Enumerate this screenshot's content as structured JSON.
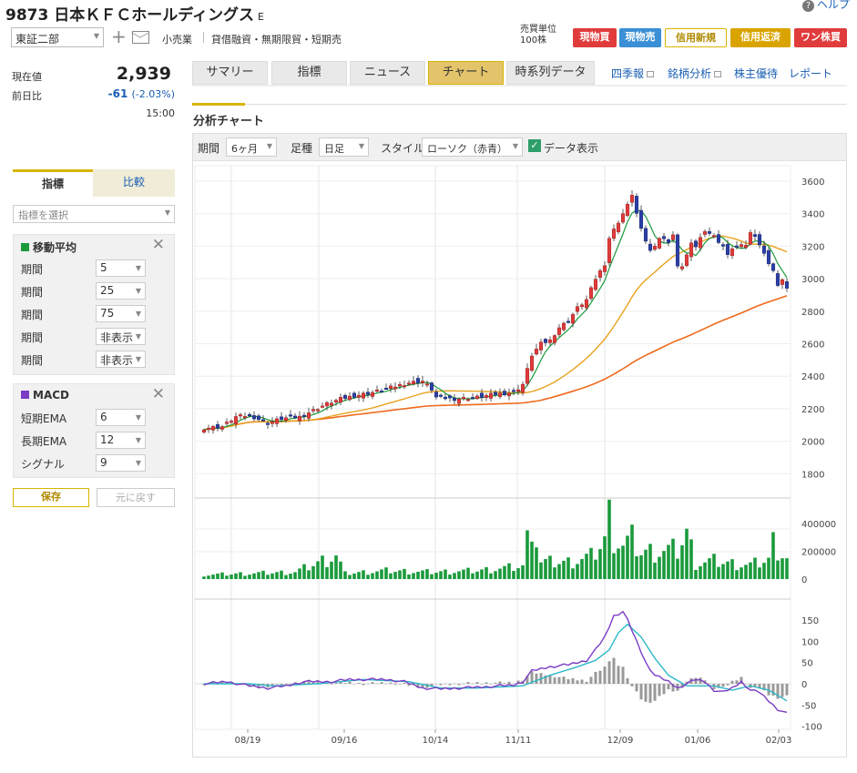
{
  "header": {
    "code_name": "9873 日本ＫＦＣホールディングス",
    "market_type": "E",
    "help": "ヘルプ"
  },
  "subheader": {
    "market": "東証二部",
    "industry": "小売業",
    "credit": "貸借融資・無期限貿・短期売",
    "unit_line1": "売買単位",
    "unit_line2": "100株"
  },
  "trade_buttons": [
    "現物買",
    "現物売",
    "信用新規",
    "信用返済",
    "ワン株買"
  ],
  "quote": {
    "price_label": "現在値",
    "price": "2,939",
    "change_label": "前日比",
    "change": "-61",
    "change_pct": "(-2.03%)",
    "time": "15:00"
  },
  "left": {
    "tab_indicator": "指標",
    "tab_compare": "比較",
    "select_placeholder": "指標を選択",
    "ma": {
      "title": "移動平均",
      "rows": [
        {
          "label": "期間",
          "value": "5"
        },
        {
          "label": "期間",
          "value": "25"
        },
        {
          "label": "期間",
          "value": "75"
        },
        {
          "label": "期間",
          "value": "非表示"
        },
        {
          "label": "期間",
          "value": "非表示"
        }
      ]
    },
    "macd": {
      "title": "MACD",
      "rows": [
        {
          "label": "短期EMA",
          "value": "6"
        },
        {
          "label": "長期EMA",
          "value": "12"
        },
        {
          "label": "シグナル",
          "value": "9"
        }
      ]
    },
    "save": "保存",
    "reset": "元に戻す"
  },
  "tabs": [
    "サマリー",
    "指標",
    "ニュース",
    "チャート",
    "時系列データ"
  ],
  "active_tab": "チャート",
  "right_links": [
    "四季報",
    "銘柄分析",
    "株主優待",
    "レポート"
  ],
  "section_title": "分析チャート",
  "controls": {
    "period_label": "期間",
    "period": "6ヶ月",
    "foot_label": "足種",
    "foot": "日足",
    "style_label": "スタイル",
    "style": "ローソク（赤青）",
    "data_display": "データ表示"
  },
  "colors": {
    "accent": "#d9b400",
    "up": "#e03c3c",
    "down": "#2b3fa8",
    "ma5": "#1a9a3c",
    "ma25": "#e8a21e",
    "ma75": "#ee6a1c",
    "volume": "#1a9a3c",
    "macd": "#7a3cc4",
    "signal": "#2bb8c8",
    "hist": "#999999"
  },
  "chart_data": {
    "type": "candlestick",
    "x_ticks": [
      "08/19",
      "09/16",
      "10/14",
      "11/11",
      "12/09",
      "01/06",
      "02/03"
    ],
    "price_axis": [
      3600,
      3400,
      3200,
      3000,
      2800,
      2600,
      2400,
      2200,
      2000,
      1800
    ],
    "volume_axis": [
      "400000",
      "200000",
      "0"
    ],
    "macd_axis": [
      150,
      100,
      50,
      0,
      -50,
      -100
    ],
    "ma_periods": [
      5,
      25,
      75
    ],
    "close_anchors": [
      [
        0,
        2080
      ],
      [
        4,
        2090
      ],
      [
        7,
        2150
      ],
      [
        10,
        2160
      ],
      [
        14,
        2110
      ],
      [
        17,
        2140
      ],
      [
        21,
        2150
      ],
      [
        24,
        2190
      ],
      [
        27,
        2230
      ],
      [
        30,
        2260
      ],
      [
        33,
        2280
      ],
      [
        37,
        2300
      ],
      [
        41,
        2330
      ],
      [
        45,
        2360
      ],
      [
        48,
        2370
      ],
      [
        50,
        2320
      ],
      [
        51,
        2270
      ],
      [
        55,
        2260
      ],
      [
        60,
        2270
      ],
      [
        64,
        2290
      ],
      [
        68,
        2300
      ],
      [
        70,
        2350
      ],
      [
        72,
        2530
      ],
      [
        74,
        2600
      ],
      [
        76,
        2620
      ],
      [
        78,
        2700
      ],
      [
        80,
        2740
      ],
      [
        82,
        2820
      ],
      [
        84,
        2870
      ],
      [
        86,
        3000
      ],
      [
        88,
        3090
      ],
      [
        89,
        3250
      ],
      [
        91,
        3350
      ],
      [
        93,
        3450
      ],
      [
        94,
        3520
      ],
      [
        95,
        3400
      ],
      [
        96,
        3300
      ],
      [
        98,
        3170
      ],
      [
        100,
        3250
      ],
      [
        102,
        3230
      ],
      [
        103,
        3270
      ],
      [
        104,
        3070
      ],
      [
        105,
        3080
      ],
      [
        107,
        3210
      ],
      [
        108,
        3200
      ],
      [
        110,
        3300
      ],
      [
        112,
        3260
      ],
      [
        114,
        3200
      ],
      [
        115,
        3140
      ],
      [
        116,
        3190
      ],
      [
        118,
        3200
      ],
      [
        119,
        3210
      ],
      [
        120,
        3280
      ],
      [
        121,
        3270
      ],
      [
        123,
        3150
      ],
      [
        125,
        3050
      ],
      [
        126,
        2950
      ],
      [
        127,
        3000
      ],
      [
        128,
        2939
      ]
    ],
    "volume_anchors": [
      [
        0,
        30000
      ],
      [
        10,
        40000
      ],
      [
        20,
        50000
      ],
      [
        29,
        170000
      ],
      [
        31,
        40000
      ],
      [
        40,
        60000
      ],
      [
        50,
        50000
      ],
      [
        60,
        60000
      ],
      [
        70,
        90000
      ],
      [
        72,
        450000
      ],
      [
        74,
        120000
      ],
      [
        80,
        120000
      ],
      [
        85,
        160000
      ],
      [
        88,
        280000
      ],
      [
        89,
        440000
      ],
      [
        90,
        310000
      ],
      [
        92,
        240000
      ],
      [
        94,
        280000
      ],
      [
        96,
        190000
      ],
      [
        100,
        200000
      ],
      [
        104,
        210000
      ],
      [
        106,
        330000
      ],
      [
        108,
        110000
      ],
      [
        112,
        130000
      ],
      [
        116,
        110000
      ],
      [
        120,
        100000
      ],
      [
        124,
        140000
      ],
      [
        125,
        260000
      ],
      [
        128,
        150000
      ]
    ],
    "macd_anchors": [
      [
        0,
        0
      ],
      [
        5,
        5
      ],
      [
        10,
        -5
      ],
      [
        14,
        -10
      ],
      [
        18,
        -5
      ],
      [
        22,
        5
      ],
      [
        28,
        5
      ],
      [
        32,
        10
      ],
      [
        40,
        10
      ],
      [
        44,
        5
      ],
      [
        48,
        -10
      ],
      [
        52,
        -12
      ],
      [
        56,
        -10
      ],
      [
        60,
        -8
      ],
      [
        65,
        -5
      ],
      [
        68,
        -3
      ],
      [
        70,
        5
      ],
      [
        72,
        30
      ],
      [
        76,
        40
      ],
      [
        80,
        45
      ],
      [
        84,
        55
      ],
      [
        86,
        80
      ],
      [
        88,
        110
      ],
      [
        90,
        160
      ],
      [
        92,
        170
      ],
      [
        93,
        150
      ],
      [
        95,
        100
      ],
      [
        97,
        50
      ],
      [
        99,
        20
      ],
      [
        102,
        5
      ],
      [
        104,
        -10
      ],
      [
        106,
        0
      ],
      [
        108,
        10
      ],
      [
        110,
        5
      ],
      [
        112,
        -15
      ],
      [
        114,
        -20
      ],
      [
        116,
        -10
      ],
      [
        118,
        5
      ],
      [
        120,
        -15
      ],
      [
        122,
        -20
      ],
      [
        124,
        -40
      ],
      [
        126,
        -60
      ],
      [
        128,
        -70
      ]
    ],
    "signal_anchors": [
      [
        0,
        0
      ],
      [
        10,
        0
      ],
      [
        15,
        -5
      ],
      [
        25,
        0
      ],
      [
        35,
        10
      ],
      [
        45,
        5
      ],
      [
        52,
        -10
      ],
      [
        60,
        -10
      ],
      [
        70,
        -5
      ],
      [
        76,
        20
      ],
      [
        82,
        40
      ],
      [
        86,
        55
      ],
      [
        89,
        80
      ],
      [
        91,
        120
      ],
      [
        93,
        140
      ],
      [
        96,
        110
      ],
      [
        99,
        60
      ],
      [
        102,
        20
      ],
      [
        106,
        -5
      ],
      [
        112,
        -5
      ],
      [
        116,
        -15
      ],
      [
        120,
        -5
      ],
      [
        124,
        -15
      ],
      [
        128,
        -40
      ]
    ]
  }
}
